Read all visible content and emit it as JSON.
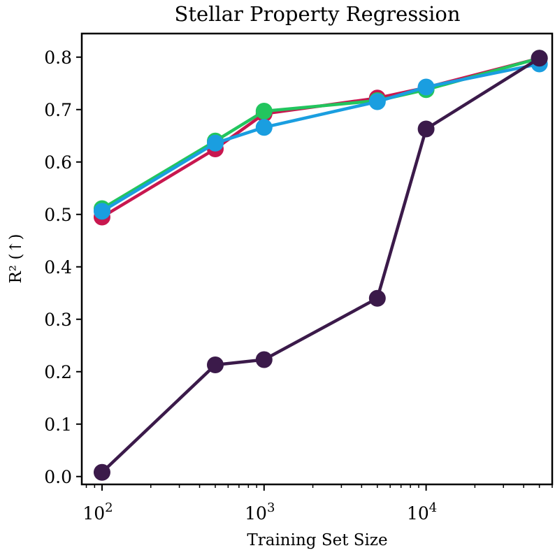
{
  "chart_data": {
    "type": "line",
    "title": "Stellar Property Regression",
    "xlabel": "Training Set Size",
    "ylabel": "R² (↑)",
    "xscale": "log",
    "xlim": [
      75,
      60000
    ],
    "ylim": [
      -0.015,
      0.845
    ],
    "x_ticks": [
      {
        "value": 100,
        "label": "10",
        "exp": "2"
      },
      {
        "value": 1000,
        "label": "10",
        "exp": "3"
      },
      {
        "value": 10000,
        "label": "10",
        "exp": "4"
      }
    ],
    "y_ticks": [
      {
        "value": 0.0,
        "label": "0.0"
      },
      {
        "value": 0.1,
        "label": "0.1"
      },
      {
        "value": 0.2,
        "label": "0.2"
      },
      {
        "value": 0.3,
        "label": "0.3"
      },
      {
        "value": 0.4,
        "label": "0.4"
      },
      {
        "value": 0.5,
        "label": "0.5"
      },
      {
        "value": 0.6,
        "label": "0.6"
      },
      {
        "value": 0.7,
        "label": "0.7"
      },
      {
        "value": 0.8,
        "label": "0.8"
      }
    ],
    "x": [
      100,
      500,
      1000,
      5000,
      10000,
      50000
    ],
    "series": [
      {
        "name": "series-crimson",
        "color": "#c8174f",
        "values": [
          0.495,
          0.625,
          0.692,
          0.722,
          0.742,
          0.798
        ]
      },
      {
        "name": "series-green",
        "color": "#22c55e",
        "values": [
          0.511,
          0.64,
          0.697,
          0.717,
          0.738,
          0.798
        ]
      },
      {
        "name": "series-blue",
        "color": "#1a9ee0",
        "values": [
          0.506,
          0.636,
          0.666,
          0.715,
          0.743,
          0.787
        ]
      },
      {
        "name": "series-dark-purple",
        "color": "#3b1a4a",
        "values": [
          0.008,
          0.213,
          0.223,
          0.34,
          0.663,
          0.798
        ]
      }
    ]
  }
}
